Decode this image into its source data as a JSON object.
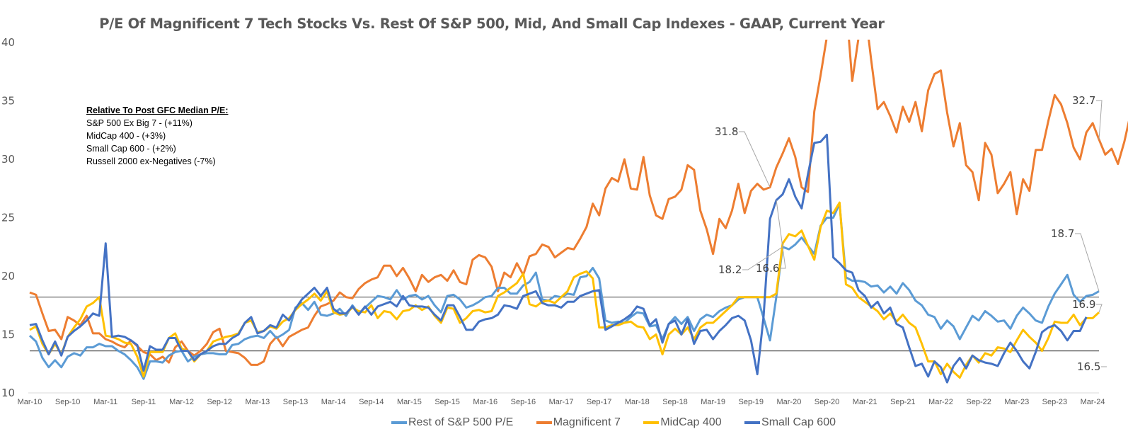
{
  "chart_data": {
    "type": "line",
    "title": "P/E Of Magnificent 7 Tech Stocks Vs. Rest Of S&P 500, Mid, And Small Cap Indexes - GAAP, Current Year",
    "xlabel": "",
    "ylabel": "",
    "ylim": [
      10,
      40
    ],
    "yticks": [
      "10",
      "15",
      "20",
      "25",
      "30",
      "35",
      "40"
    ],
    "x_start": "Mar-10",
    "x_frequency": "monthly",
    "x_tick_labels": [
      "Mar-10",
      "Sep-10",
      "Mar-11",
      "Sep-11",
      "Mar-12",
      "Sep-12",
      "Mar-13",
      "Sep-13",
      "Mar-14",
      "Sep-14",
      "Mar-15",
      "Sep-15",
      "Mar-16",
      "Sep-16",
      "Mar-17",
      "Sep-17",
      "Mar-18",
      "Sep-18",
      "Mar-19",
      "Sep-19",
      "Mar-20",
      "Sep-20",
      "Mar-21",
      "Sep-21",
      "Mar-22",
      "Sep-22",
      "Mar-23",
      "Sep-23",
      "Mar-24"
    ],
    "grid": false,
    "legend_position": "bottom",
    "reference_lines": [
      18.2,
      13.6
    ],
    "series": [
      {
        "name": "Rest of S&P 500 P/E",
        "color": "#5B9BD5",
        "values": [
          14.9,
          14.4,
          13.0,
          12.2,
          12.8,
          12.2,
          13.1,
          13.4,
          13.2,
          13.9,
          13.9,
          14.2,
          14.0,
          14.0,
          13.6,
          13.3,
          12.8,
          12.2,
          11.2,
          12.7,
          12.7,
          12.6,
          13.2,
          13.5,
          13.6,
          12.7,
          13.1,
          13.3,
          13.4,
          13.4,
          13.3,
          13.3,
          14.1,
          14.2,
          14.6,
          14.8,
          14.9,
          14.7,
          15.3,
          14.7,
          15.0,
          15.4,
          17.3,
          17.7,
          17.1,
          17.8,
          16.7,
          16.6,
          16.8,
          17.2,
          16.6,
          17.5,
          16.8,
          17.3,
          17.8,
          18.3,
          18.2,
          18.0,
          18.8,
          18.0,
          18.3,
          18.4,
          18.0,
          18.3,
          17.5,
          16.9,
          18.3,
          18.4,
          18.0,
          17.3,
          17.5,
          17.8,
          18.2,
          18.3,
          19.0,
          19.0,
          18.5,
          18.5,
          19.2,
          19.5,
          20.3,
          18.0,
          17.9,
          18.3,
          18.2,
          18.5,
          18.4,
          19.9,
          20.0,
          20.7,
          19.8,
          16.2,
          16.0,
          16.1,
          16.0,
          16.5,
          16.9,
          16.8,
          15.7,
          15.8,
          14.6,
          15.9,
          16.5,
          15.9,
          16.5,
          15.3,
          16.3,
          16.7,
          16.5,
          17.0,
          17.3,
          17.5,
          18.0,
          18.2,
          18.2,
          18.2,
          16.4,
          14.5,
          18.2,
          22.5,
          22.3,
          22.7,
          23.3,
          22.6,
          21.9,
          24.3,
          25.0,
          25.0,
          26.2,
          19.9,
          19.6,
          19.6,
          19.5,
          19.1,
          19.2,
          18.6,
          19.1,
          18.5,
          19.4,
          18.8,
          17.9,
          17.5,
          16.7,
          16.5,
          15.5,
          16.2,
          15.7,
          14.6,
          15.6,
          16.6,
          16.2,
          17.0,
          16.6,
          16.1,
          16.2,
          15.5,
          16.6,
          17.3,
          16.8,
          16.2,
          16.0,
          17.4,
          18.5,
          19.3,
          20.1,
          18.4,
          17.8,
          18.3,
          18.4,
          18.7
        ]
      },
      {
        "name": "Magnificent 7",
        "color": "#ED7D31",
        "values": [
          18.6,
          18.4,
          16.8,
          15.3,
          15.4,
          14.6,
          16.5,
          16.2,
          15.8,
          16.6,
          15.1,
          15.1,
          14.6,
          14.4,
          14.1,
          13.9,
          14.5,
          14.0,
          13.5,
          13.3,
          12.8,
          13.1,
          12.6,
          13.9,
          14.4,
          13.6,
          13.2,
          13.6,
          14.2,
          15.2,
          15.5,
          13.6,
          13.5,
          13.4,
          13.0,
          12.4,
          12.4,
          12.7,
          14.2,
          14.8,
          14.0,
          14.8,
          15.1,
          15.4,
          15.6,
          16.6,
          17.4,
          17.6,
          17.9,
          18.6,
          18.2,
          18.1,
          18.9,
          19.4,
          19.7,
          19.9,
          20.9,
          20.9,
          20.0,
          20.7,
          19.8,
          18.7,
          20.1,
          19.5,
          19.9,
          20.1,
          19.6,
          20.5,
          19.5,
          19.3,
          21.4,
          21.8,
          21.6,
          20.8,
          18.7,
          20.3,
          19.9,
          21.1,
          20.1,
          21.7,
          21.9,
          22.7,
          22.5,
          21.6,
          22.0,
          22.4,
          22.3,
          23.2,
          24.2,
          26.2,
          25.2,
          27.5,
          28.4,
          28.1,
          30.0,
          27.5,
          27.4,
          30.2,
          26.9,
          25.2,
          24.9,
          26.6,
          26.8,
          27.4,
          29.5,
          29.1,
          25.6,
          24.0,
          21.9,
          24.9,
          24.1,
          25.6,
          27.9,
          25.4,
          27.3,
          27.9,
          27.4,
          27.6,
          29.3,
          30.5,
          31.8,
          30.2,
          27.6,
          27.2,
          34.1,
          37.2,
          40.5,
          42.5,
          43.0,
          43.5,
          36.7,
          40.4,
          43.0,
          38.5,
          34.3,
          34.9,
          33.7,
          32.3,
          34.5,
          33.2,
          34.9,
          32.4,
          35.9,
          37.3,
          37.6,
          34.0,
          31.1,
          33.1,
          29.5,
          28.9,
          26.5,
          31.4,
          30.4,
          27.1,
          27.9,
          28.9,
          25.3,
          28.3,
          27.3,
          30.8,
          30.8,
          33.3,
          35.5,
          34.7,
          33.1,
          31.0,
          30.0,
          32.3,
          33.1,
          31.7,
          30.4,
          30.9,
          29.6,
          31.5,
          33.9,
          32.7
        ]
      },
      {
        "name": "MidCap 400",
        "color": "#FFC000",
        "values": [
          15.4,
          15.7,
          14.2,
          13.3,
          14.2,
          13.3,
          14.8,
          15.6,
          16.3,
          17.4,
          17.7,
          18.2,
          14.9,
          14.8,
          14.6,
          14.3,
          14.2,
          13.1,
          11.4,
          13.5,
          13.5,
          13.5,
          14.7,
          15.1,
          13.8,
          13.6,
          12.7,
          13.3,
          13.6,
          14.4,
          14.6,
          14.8,
          14.9,
          15.1,
          16.0,
          16.2,
          15.2,
          15.3,
          15.7,
          15.5,
          16.1,
          16.4,
          17.1,
          17.6,
          18.0,
          18.5,
          17.9,
          18.7,
          16.9,
          16.7,
          16.8,
          17.3,
          17.0,
          16.9,
          17.5,
          16.4,
          17.0,
          16.9,
          16.3,
          17.0,
          17.1,
          17.5,
          17.1,
          17.4,
          16.6,
          16.0,
          17.3,
          17.2,
          16.0,
          16.4,
          17.0,
          17.1,
          16.9,
          17.0,
          18.3,
          18.6,
          19.0,
          19.4,
          20.2,
          17.6,
          17.4,
          17.8,
          17.9,
          17.7,
          18.2,
          18.7,
          19.9,
          20.2,
          20.4,
          19.8,
          15.6,
          15.6,
          15.8,
          15.8,
          16.0,
          16.1,
          15.7,
          15.6,
          14.6,
          15.0,
          13.3,
          15.0,
          15.5,
          15.0,
          15.6,
          14.6,
          15.6,
          16.0,
          16.0,
          16.5,
          17.0,
          17.5,
          18.2,
          18.2,
          18.2,
          18.2,
          18.2,
          18.2,
          18.5,
          22.8,
          23.6,
          23.4,
          23.9,
          22.6,
          21.4,
          24.2,
          25.6,
          25.4,
          26.3,
          19.3,
          19.0,
          18.2,
          17.8,
          17.4,
          17.0,
          16.3,
          16.8,
          16.1,
          16.7,
          16.0,
          15.6,
          14.2,
          12.7,
          12.7,
          11.6,
          12.5,
          11.8,
          11.3,
          12.4,
          13.2,
          12.6,
          13.4,
          13.2,
          13.9,
          13.8,
          13.5,
          14.5,
          15.4,
          14.8,
          14.3,
          13.6,
          14.7,
          16.1,
          16.0,
          16.0,
          16.7,
          15.8,
          16.4,
          16.4,
          16.9
        ]
      },
      {
        "name": "Small Cap 600",
        "color": "#4472C4",
        "values": [
          15.8,
          15.9,
          14.5,
          13.3,
          14.4,
          13.2,
          14.8,
          15.3,
          15.7,
          16.2,
          16.8,
          16.6,
          22.8,
          14.8,
          14.9,
          14.8,
          14.5,
          14.1,
          11.9,
          14.0,
          13.7,
          13.7,
          14.7,
          14.7,
          13.6,
          13.6,
          12.8,
          13.3,
          13.6,
          14.0,
          14.2,
          14.2,
          14.7,
          15.0,
          16.0,
          16.5,
          15.1,
          15.3,
          15.8,
          15.6,
          16.7,
          16.2,
          17.2,
          18.0,
          18.5,
          19.0,
          18.3,
          19.0,
          17.2,
          16.8,
          16.8,
          17.4,
          16.7,
          17.4,
          16.7,
          17.4,
          17.6,
          17.8,
          17.4,
          18.3,
          17.5,
          17.4,
          17.4,
          17.3,
          16.7,
          16.2,
          17.5,
          17.5,
          16.5,
          15.4,
          15.4,
          16.1,
          16.3,
          16.4,
          16.7,
          17.5,
          17.4,
          17.2,
          18.3,
          18.5,
          18.7,
          17.7,
          17.5,
          17.5,
          17.3,
          17.8,
          17.8,
          18.3,
          18.5,
          18.7,
          18.8,
          15.4,
          15.7,
          16.0,
          16.3,
          16.7,
          17.4,
          17.2,
          15.8,
          16.3,
          14.3,
          15.9,
          16.2,
          15.0,
          16.3,
          14.2,
          15.3,
          15.4,
          14.6,
          15.3,
          15.8,
          16.4,
          16.6,
          16.2,
          14.5,
          11.6,
          16.6,
          24.9,
          26.5,
          27.0,
          28.3,
          26.8,
          25.8,
          28.7,
          31.4,
          31.5,
          32.1,
          21.6,
          21.1,
          20.5,
          20.3,
          18.8,
          18.3,
          17.3,
          17.8,
          16.8,
          17.3,
          15.9,
          15.6,
          13.9,
          12.3,
          12.5,
          11.4,
          12.7,
          12.2,
          10.9,
          12.3,
          13.0,
          12.1,
          13.2,
          12.8,
          12.6,
          12.5,
          12.3,
          13.4,
          14.3,
          13.6,
          12.7,
          12.1,
          13.5,
          15.2,
          15.6,
          15.8,
          15.3,
          14.5,
          15.3,
          15.3,
          16.5
        ]
      }
    ],
    "annotations": [
      {
        "series": "Magnificent 7",
        "at": "Dec-19",
        "text": "31.8"
      },
      {
        "series": "Rest of S&P 500 P/E",
        "at": "Feb-20",
        "text": "18.2"
      },
      {
        "series": "Small Cap 600",
        "at": "Jan-20",
        "text": "16.6"
      },
      {
        "series": "Magnificent 7",
        "at": "Jun-24",
        "text": "32.7"
      },
      {
        "series": "Rest of S&P 500 P/E",
        "at": "Jun-24",
        "text": "18.7"
      },
      {
        "series": "MidCap 400",
        "at": "Jun-24",
        "text": "16.9"
      },
      {
        "series": "Small Cap 600",
        "at": "Jun-24",
        "text": "16.5"
      }
    ]
  },
  "note": {
    "heading": "Relative To Post GFC Median P/E:",
    "lines": [
      "S&P 500 Ex Big 7 - (+11%)",
      "MidCap 400 - (+3%)",
      "Small Cap 600  - (+2%)",
      "Russell 2000 ex-Negatives (-7%)"
    ]
  }
}
